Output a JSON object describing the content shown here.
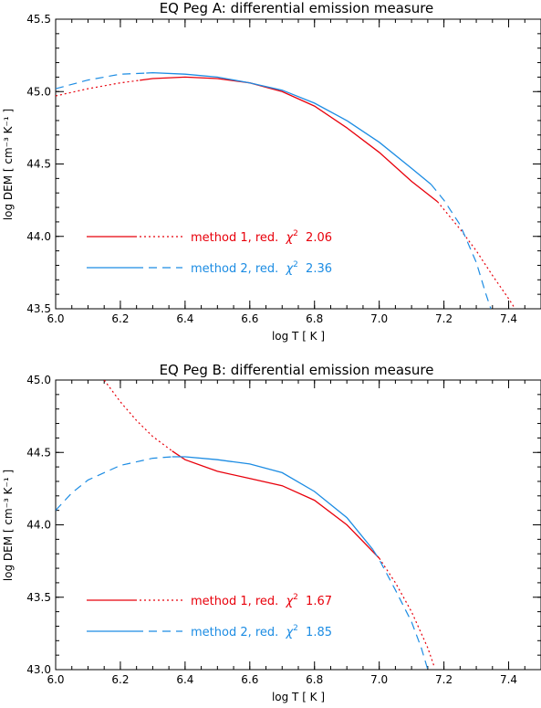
{
  "chart_data": [
    {
      "type": "line",
      "title": "EQ Peg A: differential emission measure",
      "xlabel": "log T [ K ]",
      "ylabel": "log DEM [ cm⁻³ K⁻¹ ]",
      "xlim": [
        6.0,
        7.5
      ],
      "ylim": [
        43.5,
        45.5
      ],
      "xticks": [
        "6.0",
        "6.2",
        "6.4",
        "6.6",
        "6.8",
        "7.0",
        "7.2",
        "7.4"
      ],
      "yticks": [
        "43.5",
        "44.0",
        "44.5",
        "45.0",
        "45.5"
      ],
      "legend_position": "lower-left",
      "series": [
        {
          "name": "method 1, red. χ² 2.06",
          "color": "#e8000b",
          "legend_label": "method 1, red.",
          "legend_chi": "2.06",
          "solid_range": [
            6.26,
            7.18
          ],
          "points": [
            [
              6.0,
              44.97
            ],
            [
              6.1,
              45.02
            ],
            [
              6.2,
              45.06
            ],
            [
              6.3,
              45.09
            ],
            [
              6.4,
              45.1
            ],
            [
              6.5,
              45.09
            ],
            [
              6.6,
              45.06
            ],
            [
              6.7,
              45.0
            ],
            [
              6.8,
              44.9
            ],
            [
              6.9,
              44.75
            ],
            [
              7.0,
              44.58
            ],
            [
              7.1,
              44.38
            ],
            [
              7.18,
              44.24
            ],
            [
              7.25,
              44.05
            ],
            [
              7.3,
              43.9
            ],
            [
              7.35,
              43.73
            ],
            [
              7.4,
              43.57
            ],
            [
              7.42,
              43.5
            ]
          ]
        },
        {
          "name": "method 2, red. χ² 2.36",
          "color": "#1c8ce3",
          "legend_label": "method 2, red.",
          "legend_chi": "2.36",
          "solid_range": [
            6.28,
            7.16
          ],
          "points": [
            [
              6.0,
              45.02
            ],
            [
              6.1,
              45.08
            ],
            [
              6.2,
              45.12
            ],
            [
              6.3,
              45.13
            ],
            [
              6.4,
              45.12
            ],
            [
              6.5,
              45.1
            ],
            [
              6.6,
              45.06
            ],
            [
              6.7,
              45.01
            ],
            [
              6.8,
              44.92
            ],
            [
              6.9,
              44.8
            ],
            [
              7.0,
              44.65
            ],
            [
              7.1,
              44.47
            ],
            [
              7.16,
              44.36
            ],
            [
              7.2,
              44.25
            ],
            [
              7.25,
              44.08
            ],
            [
              7.3,
              43.82
            ],
            [
              7.33,
              43.6
            ],
            [
              7.345,
              43.5
            ]
          ]
        }
      ]
    },
    {
      "type": "line",
      "title": "EQ Peg B: differential emission measure",
      "xlabel": "log T [ K ]",
      "ylabel": "log DEM [ cm⁻³ K⁻¹ ]",
      "xlim": [
        6.0,
        7.5
      ],
      "ylim": [
        43.0,
        45.0
      ],
      "xticks": [
        "6.0",
        "6.2",
        "6.4",
        "6.6",
        "6.8",
        "7.0",
        "7.2",
        "7.4"
      ],
      "yticks": [
        "43.0",
        "43.5",
        "44.0",
        "44.5",
        "45.0"
      ],
      "legend_position": "lower-left",
      "series": [
        {
          "name": "method 1, red. χ² 1.67",
          "color": "#e8000b",
          "legend_label": "method 1, red.",
          "legend_chi": "1.67",
          "solid_range": [
            6.36,
            7.0
          ],
          "points": [
            [
              6.15,
              45.0
            ],
            [
              6.2,
              44.85
            ],
            [
              6.25,
              44.72
            ],
            [
              6.3,
              44.61
            ],
            [
              6.36,
              44.51
            ],
            [
              6.4,
              44.45
            ],
            [
              6.5,
              44.37
            ],
            [
              6.6,
              44.32
            ],
            [
              6.7,
              44.27
            ],
            [
              6.8,
              44.17
            ],
            [
              6.9,
              44.0
            ],
            [
              7.0,
              43.77
            ],
            [
              7.05,
              43.6
            ],
            [
              7.1,
              43.4
            ],
            [
              7.15,
              43.15
            ],
            [
              7.17,
              43.02
            ]
          ]
        },
        {
          "name": "method 2, red. χ² 1.85",
          "color": "#1c8ce3",
          "legend_label": "method 2, red.",
          "legend_chi": "1.85",
          "solid_range": [
            6.36,
            6.98
          ],
          "points": [
            [
              6.0,
              44.1
            ],
            [
              6.05,
              44.22
            ],
            [
              6.1,
              44.31
            ],
            [
              6.2,
              44.41
            ],
            [
              6.3,
              44.46
            ],
            [
              6.36,
              44.47
            ],
            [
              6.4,
              44.47
            ],
            [
              6.5,
              44.45
            ],
            [
              6.6,
              44.42
            ],
            [
              6.7,
              44.36
            ],
            [
              6.8,
              44.23
            ],
            [
              6.9,
              44.05
            ],
            [
              6.98,
              43.83
            ],
            [
              7.0,
              43.76
            ],
            [
              7.05,
              43.55
            ],
            [
              7.1,
              43.33
            ],
            [
              7.13,
              43.15
            ],
            [
              7.15,
              43.0
            ]
          ]
        }
      ]
    }
  ]
}
